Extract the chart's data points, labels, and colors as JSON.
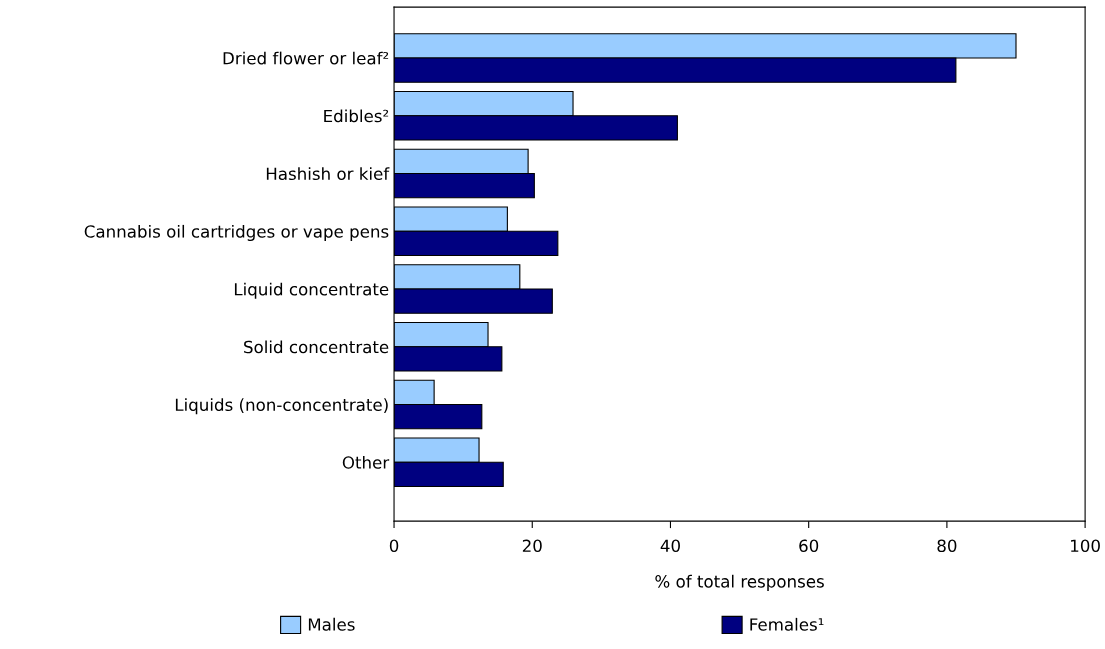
{
  "chart_data": {
    "type": "bar",
    "orientation": "horizontal",
    "xlabel": "% of total responses",
    "categories": [
      "Dried flower or leaf²",
      "Edibles²",
      "Hashish or kief",
      "Cannabis oil cartridges or vape pens",
      "Liquid concentrate",
      "Solid concentrate",
      "Liquids (non-concentrate)",
      "Other"
    ],
    "series": [
      {
        "name": "Males",
        "color": "#99ccff",
        "values": [
          90.0,
          25.9,
          19.4,
          16.4,
          18.2,
          13.6,
          5.8,
          12.3
        ]
      },
      {
        "name": "Females¹",
        "color": "#000080",
        "values": [
          81.3,
          41.0,
          20.3,
          23.7,
          22.9,
          15.6,
          12.7,
          15.8
        ]
      }
    ],
    "xlim": [
      0,
      100
    ],
    "xticks": [
      0,
      20,
      40,
      60,
      80,
      100
    ],
    "grid": false,
    "legend": "bottom"
  }
}
